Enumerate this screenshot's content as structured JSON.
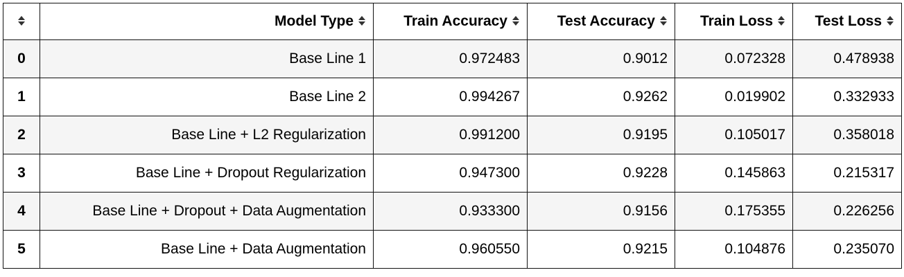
{
  "table": {
    "columns": [
      {
        "label": "Model Type",
        "sort_icon": "sort-icon"
      },
      {
        "label": "Train Accuracy",
        "sort_icon": "sort-icon"
      },
      {
        "label": "Test Accuracy",
        "sort_icon": "sort-icon"
      },
      {
        "label": "Train Loss",
        "sort_icon": "sort-icon"
      },
      {
        "label": "Test Loss",
        "sort_icon": "sort-icon"
      }
    ],
    "rows": [
      {
        "index": "0",
        "model_type": "Base Line 1",
        "train_accuracy": "0.972483",
        "test_accuracy": "0.9012",
        "train_loss": "0.072328",
        "test_loss": "0.478938"
      },
      {
        "index": "1",
        "model_type": "Base Line 2",
        "train_accuracy": "0.994267",
        "test_accuracy": "0.9262",
        "train_loss": "0.019902",
        "test_loss": "0.332933"
      },
      {
        "index": "2",
        "model_type": "Base Line + L2 Regularization",
        "train_accuracy": "0.991200",
        "test_accuracy": "0.9195",
        "train_loss": "0.105017",
        "test_loss": "0.358018"
      },
      {
        "index": "3",
        "model_type": "Base Line + Dropout Regularization",
        "train_accuracy": "0.947300",
        "test_accuracy": "0.9228",
        "train_loss": "0.145863",
        "test_loss": "0.215317"
      },
      {
        "index": "4",
        "model_type": "Base Line + Dropout + Data Augmentation",
        "train_accuracy": "0.933300",
        "test_accuracy": "0.9156",
        "train_loss": "0.175355",
        "test_loss": "0.226256"
      },
      {
        "index": "5",
        "model_type": "Base Line + Data Augmentation",
        "train_accuracy": "0.960550",
        "test_accuracy": "0.9215",
        "train_loss": "0.104876",
        "test_loss": "0.235070"
      }
    ]
  }
}
